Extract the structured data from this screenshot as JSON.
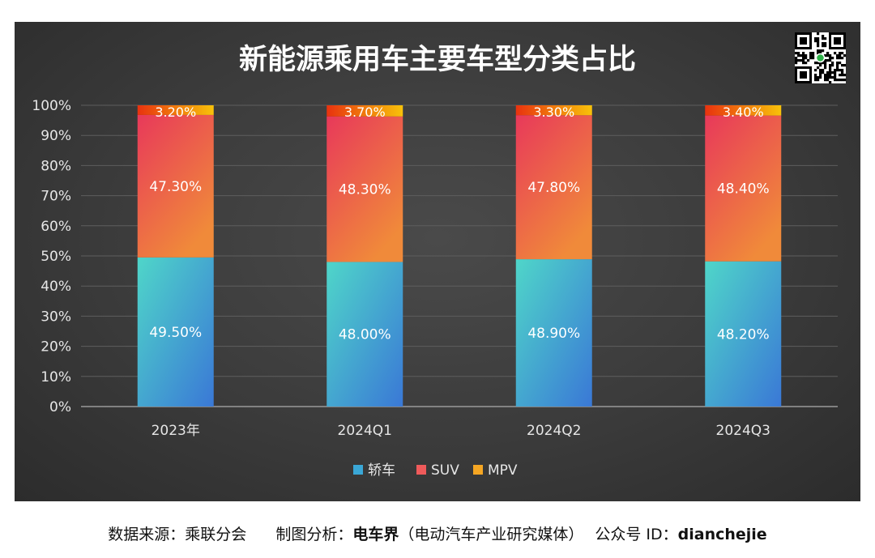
{
  "chart_data": {
    "type": "bar",
    "stacked": true,
    "title": "新能源乘用车主要车型分类占比",
    "categories": [
      "2023年",
      "2024Q1",
      "2024Q2",
      "2024Q3"
    ],
    "series": [
      {
        "name": "轿车",
        "values": [
          49.5,
          48.0,
          48.9,
          48.2
        ],
        "labels": [
          "49.50%",
          "48.00%",
          "48.90%",
          "48.20%"
        ],
        "color": "#3aa7d6"
      },
      {
        "name": "SUV",
        "values": [
          47.3,
          48.3,
          47.8,
          48.4
        ],
        "labels": [
          "47.30%",
          "48.30%",
          "47.80%",
          "48.40%"
        ],
        "color": "#ef5a5a"
      },
      {
        "name": "MPV",
        "values": [
          3.2,
          3.7,
          3.3,
          3.4
        ],
        "labels": [
          "3.20%",
          "3.70%",
          "3.30%",
          "3.40%"
        ],
        "color": "#f5a623"
      }
    ],
    "ylim": [
      0,
      100
    ],
    "yticks": [
      "0%",
      "10%",
      "20%",
      "30%",
      "40%",
      "50%",
      "60%",
      "70%",
      "80%",
      "90%",
      "100%"
    ],
    "xlabel": "",
    "ylabel": "",
    "legend_position": "bottom",
    "grid": true
  },
  "qr_code": {
    "icon": "qr-code-icon"
  },
  "footer": {
    "source_label": "数据来源：",
    "source_value": "乘联分会",
    "analysis_label": "制图分析：",
    "analysis_value": "电车界",
    "analysis_note": "（电动汽车产业研究媒体）",
    "account_label": "公众号 ID：",
    "account_value": "dianchejie"
  }
}
